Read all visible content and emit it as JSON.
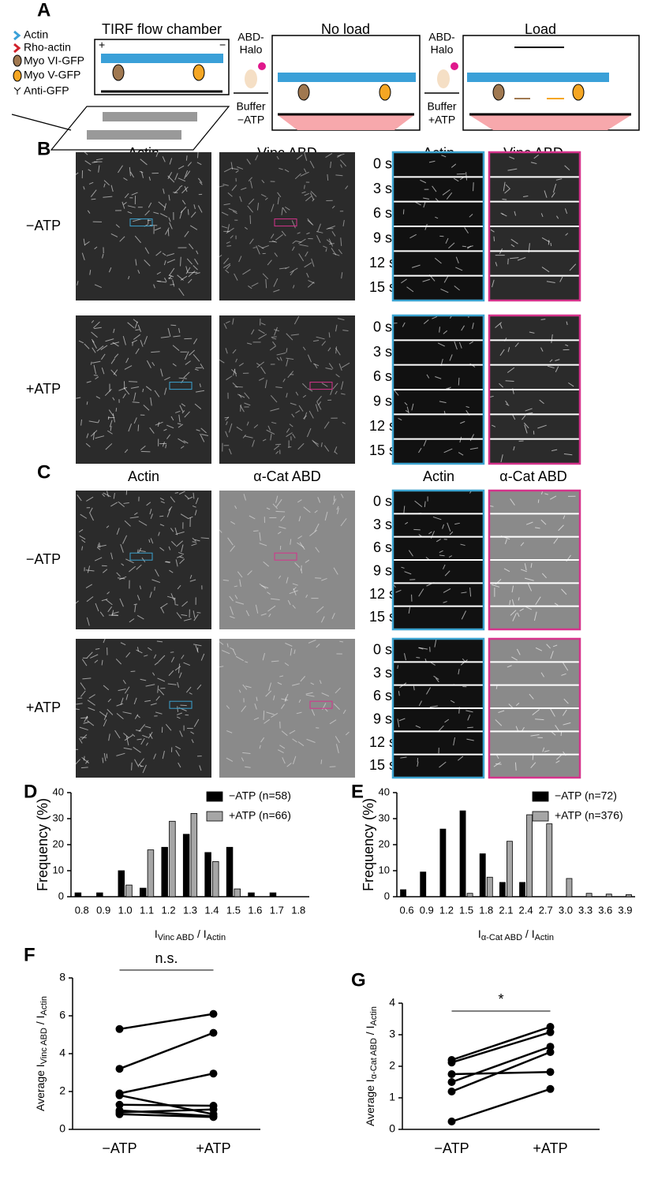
{
  "panels": {
    "a": {
      "letter": "A",
      "legend": [
        "Actin",
        "Rho-actin",
        "Myo VI-GFP",
        "Myo V-GFP",
        "Anti-GFP"
      ],
      "chamber": "TIRF flow chamber",
      "plus": "+",
      "minus": "−",
      "step1": [
        "ABD-",
        "Halo",
        "Buffer",
        "−ATP"
      ],
      "no_load": "No load",
      "step2": [
        "ABD-",
        "Halo",
        "Buffer",
        "+ATP"
      ],
      "load": "Load"
    },
    "b": {
      "letter": "B",
      "columns": [
        "Actin",
        "Vinc ABD",
        "Actin",
        "Vinc ABD"
      ],
      "rows": [
        "−ATP",
        "+ATP"
      ],
      "times": [
        "0 s",
        "3 s",
        "6 s",
        "9 s",
        "12 s",
        "15 s"
      ]
    },
    "c": {
      "letter": "C",
      "columns": [
        "Actin",
        "α-Cat ABD",
        "Actin",
        "α-Cat ABD"
      ],
      "rows": [
        "−ATP",
        "+ATP"
      ],
      "times": [
        "0 s",
        "3 s",
        "6 s",
        "9 s",
        "12 s",
        "15 s"
      ]
    }
  },
  "chart_data": [
    {
      "type": "bar",
      "letter": "D",
      "y_label": "Frequency (%)",
      "x_label": [
        "I",
        "Vinc ABD",
        "/ I",
        "Actin"
      ],
      "categories": [
        "0.8",
        "0.9",
        "1.0",
        "1.1",
        "1.2",
        "1.3",
        "1.4",
        "1.5",
        "1.6",
        "1.7",
        "1.8"
      ],
      "series": [
        {
          "name": "−ATP (n=58)",
          "color": "#000000",
          "values": [
            1.5,
            1.5,
            10,
            3.3,
            19,
            24,
            17,
            19,
            1.5,
            1.5,
            0
          ]
        },
        {
          "name": "+ATP (n=66)",
          "color": "#a6a6a6",
          "values": [
            0,
            0,
            4.5,
            18,
            29,
            32,
            13.5,
            3,
            0,
            0,
            0
          ]
        }
      ],
      "ylim": [
        0,
        40
      ],
      "yticks": [
        0,
        10,
        20,
        30,
        40
      ],
      "legend": "upper right"
    },
    {
      "type": "bar",
      "letter": "E",
      "y_label": "Frequency (%)",
      "x_label": [
        "I",
        "α-Cat ABD",
        "/ I",
        "Actin"
      ],
      "categories": [
        "0.6",
        "0.9",
        "1.2",
        "1.5",
        "1.8",
        "2.1",
        "2.4",
        "2.7",
        "3.0",
        "3.3",
        "3.6",
        "3.9"
      ],
      "series": [
        {
          "name": "−ATP (n=72)",
          "color": "#000000",
          "values": [
            2.7,
            9.5,
            26,
            33,
            16.5,
            5.5,
            5.5,
            0,
            0,
            0,
            0,
            0
          ]
        },
        {
          "name": "+ATP (n=376)",
          "color": "#a6a6a6",
          "values": [
            0,
            0,
            0,
            1.3,
            7.5,
            21.3,
            31.5,
            28,
            7,
            1.3,
            1,
            0.8
          ]
        }
      ],
      "ylim": [
        0,
        40
      ],
      "yticks": [
        0,
        10,
        20,
        30,
        40
      ],
      "legend": "upper right"
    },
    {
      "type": "line",
      "letter": "F",
      "y_label": [
        "Average I",
        "Vinc ABD",
        "/ I",
        "Actin"
      ],
      "categories": [
        "−ATP",
        "+ATP"
      ],
      "annotation": "n.s.",
      "series": [
        {
          "color": "#000000",
          "values": [
            5.3,
            6.1
          ]
        },
        {
          "color": "#000000",
          "values": [
            3.2,
            5.1
          ]
        },
        {
          "color": "#000000",
          "values": [
            1.9,
            2.95
          ]
        },
        {
          "color": "#000000",
          "values": [
            1.8,
            0.8
          ]
        },
        {
          "color": "#000000",
          "values": [
            1.3,
            1.25
          ]
        },
        {
          "color": "#000000",
          "values": [
            1.0,
            0.7
          ]
        },
        {
          "color": "#000000",
          "values": [
            0.9,
            1.05
          ]
        },
        {
          "color": "#000000",
          "values": [
            0.8,
            0.65
          ]
        }
      ],
      "ylim": [
        0,
        8
      ],
      "yticks": [
        0,
        2,
        4,
        6,
        8
      ]
    },
    {
      "type": "line",
      "letter": "G",
      "y_label": [
        "Average I",
        "α-Cat ABD",
        "/ I",
        "Actin"
      ],
      "categories": [
        "−ATP",
        "+ATP"
      ],
      "annotation": "*",
      "series": [
        {
          "color": "#000000",
          "values": [
            2.2,
            3.25
          ]
        },
        {
          "color": "#000000",
          "values": [
            2.12,
            3.08
          ]
        },
        {
          "color": "#000000",
          "values": [
            1.75,
            1.82
          ]
        },
        {
          "color": "#000000",
          "values": [
            1.5,
            2.62
          ]
        },
        {
          "color": "#000000",
          "values": [
            1.2,
            2.45
          ]
        },
        {
          "color": "#000000",
          "values": [
            0.25,
            1.28
          ]
        }
      ],
      "ylim": [
        0,
        4
      ],
      "yticks": [
        0,
        1,
        2,
        3,
        4
      ]
    }
  ]
}
